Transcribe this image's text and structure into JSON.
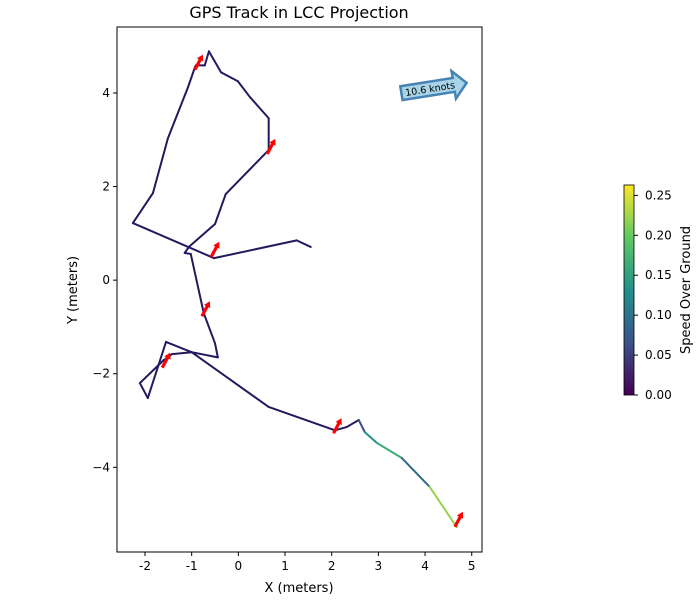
{
  "chart_data": {
    "type": "line",
    "title": "GPS Track in LCC Projection",
    "xlabel": "X (meters)",
    "ylabel": "Y (meters)",
    "xlim": [
      -2.6,
      5.22
    ],
    "ylim": [
      -5.81,
      5.41
    ],
    "xticks": [
      -2,
      -1,
      0,
      1,
      2,
      3,
      4,
      5
    ],
    "yticks": [
      -4,
      -2,
      0,
      2,
      4
    ],
    "grid": false,
    "track": [
      [
        1.55,
        0.71
      ],
      [
        1.25,
        0.85
      ],
      [
        -0.52,
        0.47
      ],
      [
        -2.26,
        1.22
      ],
      [
        -1.83,
        1.86
      ],
      [
        -1.51,
        3.03
      ],
      [
        -1.08,
        4.12
      ],
      [
        -0.93,
        4.55
      ],
      [
        -0.91,
        4.59
      ],
      [
        -0.72,
        4.59
      ],
      [
        -0.63,
        4.89
      ],
      [
        -0.37,
        4.44
      ],
      [
        -0.01,
        4.25
      ],
      [
        0.25,
        3.91
      ],
      [
        0.65,
        3.46
      ],
      [
        0.65,
        2.78
      ],
      [
        -0.27,
        1.84
      ],
      [
        -0.5,
        1.2
      ],
      [
        -1.06,
        0.71
      ],
      [
        -1.15,
        0.58
      ],
      [
        -1.02,
        0.56
      ],
      [
        -0.74,
        -0.71
      ],
      [
        -0.5,
        -1.35
      ],
      [
        -0.44,
        -1.65
      ],
      [
        -1.0,
        -1.54
      ],
      [
        -1.42,
        -1.58
      ],
      [
        -1.6,
        -1.71
      ],
      [
        -2.11,
        -2.2
      ],
      [
        -1.94,
        -2.52
      ],
      [
        -1.55,
        -1.32
      ],
      [
        -1.0,
        -1.54
      ],
      [
        0.65,
        -2.71
      ],
      [
        2.07,
        -3.21
      ],
      [
        2.32,
        -3.14
      ],
      [
        2.58,
        -2.99
      ],
      [
        2.71,
        -3.25
      ],
      [
        2.97,
        -3.48
      ],
      [
        3.5,
        -3.8
      ],
      [
        4.1,
        -4.42
      ],
      [
        4.68,
        -5.28
      ]
    ],
    "segment_speed": [
      0.01,
      0.01,
      0.01,
      0.01,
      0.01,
      0.01,
      0.01,
      0.01,
      0.01,
      0.01,
      0.01,
      0.01,
      0.01,
      0.01,
      0.01,
      0.01,
      0.01,
      0.01,
      0.01,
      0.01,
      0.01,
      0.01,
      0.01,
      0.01,
      0.01,
      0.01,
      0.01,
      0.01,
      0.01,
      0.01,
      0.01,
      0.01,
      0.01,
      0.01,
      0.06,
      0.13,
      0.16,
      0.09,
      0.22
    ],
    "heading_arrows": [
      [
        -0.85,
        4.65
      ],
      [
        0.7,
        2.85
      ],
      [
        -0.5,
        0.65
      ],
      [
        -0.7,
        -0.62
      ],
      [
        -1.55,
        -1.72
      ],
      [
        2.12,
        -3.12
      ],
      [
        4.72,
        -5.12
      ]
    ],
    "arrow_color": "#ff0000",
    "quiver_key": {
      "label": "10.6 knots",
      "fill": "#a9d4e8",
      "edge": "#4682b4"
    },
    "colorbar": {
      "label": "Speed Over Ground",
      "range": [
        0,
        0.263
      ],
      "ticks": [
        "0.00",
        "0.05",
        "0.10",
        "0.15",
        "0.20",
        "0.25"
      ],
      "colormap": "viridis"
    }
  }
}
